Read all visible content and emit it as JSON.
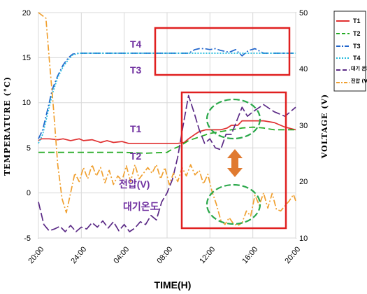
{
  "chart_data": {
    "type": "line",
    "xlabel": "TIME(H)",
    "ylabel_left": "TEMPERATURE (°C)",
    "ylabel_right": "VOLTAGE (V)",
    "ylim_left": [
      -5,
      20
    ],
    "ylim_right": [
      10,
      50
    ],
    "xlim": [
      0,
      24
    ],
    "x_ticks": [
      0,
      4,
      8,
      12,
      16,
      20,
      24
    ],
    "x_tick_labels": [
      "20:00",
      "24:00",
      "04:00",
      "08:00",
      "12:00",
      "16:00",
      "20:00"
    ],
    "y_left_ticks": [
      "-5",
      "0",
      "5",
      "10",
      "15",
      "20"
    ],
    "y_right_ticks": [
      "10",
      "20",
      "30",
      "40",
      "50"
    ],
    "grid": true,
    "legend_position": "right-outside",
    "series": [
      {
        "name": "T1",
        "axis": "left",
        "color": "#e03030",
        "dash": "",
        "x": [
          0,
          0.3,
          1,
          1.8,
          2.3,
          3,
          3.8,
          4.2,
          5,
          5.8,
          6.4,
          7,
          7.8,
          8.4,
          9,
          9.6,
          10.2,
          10.8,
          11.2,
          11.6,
          12.1,
          12.6,
          13,
          13.6,
          14,
          14.6,
          15,
          15.6,
          16,
          16.6,
          17,
          17.6,
          18,
          18.6,
          19,
          19.4,
          20,
          21,
          22,
          23,
          24
        ],
        "values": [
          5.8,
          6,
          6,
          5.9,
          6,
          5.8,
          6,
          5.8,
          5.9,
          5.6,
          5.8,
          5.6,
          5.7,
          5.5,
          5.5,
          5.5,
          5.5,
          5.5,
          5.5,
          5.5,
          5.5,
          5.5,
          5.5,
          5.6,
          6,
          6.5,
          6.8,
          7,
          7,
          7,
          7,
          7.2,
          7.5,
          7.5,
          8,
          8,
          8,
          8,
          7.8,
          7.3,
          7
        ]
      },
      {
        "name": "T2",
        "axis": "left",
        "color": "#22aa22",
        "dash": "9,5",
        "x": [
          0,
          2,
          4,
          6,
          8,
          10,
          12,
          12.4,
          12.8,
          13.2,
          14,
          15,
          16,
          17,
          18,
          19,
          20,
          21,
          22,
          23,
          24
        ],
        "values": [
          4.5,
          4.5,
          4.5,
          4.5,
          4.5,
          4.4,
          4.5,
          4.8,
          5,
          5.2,
          5.8,
          6.2,
          6.6,
          6.8,
          7,
          7.2,
          7.3,
          7.2,
          7,
          7,
          7
        ]
      },
      {
        "name": "T3",
        "axis": "left",
        "color": "#2266cc",
        "dash": "10,3,2,3",
        "x": [
          0,
          0.4,
          0.8,
          1.3,
          1.8,
          2.3,
          2.8,
          3.2,
          3.8,
          4.6,
          5.4,
          6.2,
          7,
          8,
          9,
          10,
          11,
          12,
          13,
          14,
          14.6,
          15,
          15.5,
          16,
          16.5,
          17,
          17.8,
          18.4,
          19,
          19.6,
          20.2,
          21,
          22,
          23,
          24
        ],
        "values": [
          6,
          7,
          9,
          11.5,
          13,
          14.2,
          15,
          15.4,
          15.5,
          15.5,
          15.5,
          15.5,
          15.5,
          15.5,
          15.5,
          15.5,
          15.5,
          15.5,
          15.5,
          15.5,
          15.9,
          16,
          16,
          15.9,
          16,
          15.8,
          15.6,
          15.9,
          15.2,
          15.8,
          16,
          15.5,
          15.5,
          15.5,
          15.5
        ]
      },
      {
        "name": "T4",
        "axis": "left",
        "color": "#22bbdd",
        "dash": "2,2",
        "x": [
          0,
          0.4,
          0.8,
          1.3,
          1.8,
          2.3,
          2.8,
          3.2,
          3.8,
          5,
          7,
          9,
          11,
          13,
          15,
          17,
          19,
          21,
          23,
          24
        ],
        "values": [
          5.5,
          6.5,
          8.5,
          11,
          12.8,
          14,
          14.8,
          15.3,
          15.5,
          15.5,
          15.5,
          15.5,
          15.5,
          15.5,
          15.5,
          15.5,
          15.5,
          15.5,
          15.5,
          15.5
        ]
      },
      {
        "name": "대기온도",
        "axis": "left",
        "color": "#5b2a86",
        "dash": "12,4",
        "x": [
          0,
          0.5,
          1,
          1.5,
          2,
          2.5,
          3,
          3.5,
          4,
          4.5,
          5,
          5.5,
          6,
          6.5,
          7,
          7.5,
          8,
          8.5,
          9,
          9.5,
          10,
          10.5,
          11,
          11.5,
          12,
          12.5,
          13,
          13.5,
          14,
          14.5,
          15,
          15.5,
          16,
          16.5,
          17,
          17.5,
          18,
          18.5,
          19,
          19.5,
          20,
          21,
          22,
          23,
          24
        ],
        "values": [
          -1,
          -3.5,
          -4.2,
          -4,
          -3.7,
          -4.3,
          -3.6,
          -4.3,
          -3.8,
          -4,
          -3.3,
          -3.8,
          -3.1,
          -3.9,
          -3.2,
          -4.2,
          -3.5,
          -4.3,
          -3.9,
          -3.2,
          -3.5,
          -2.5,
          -3,
          -1,
          0,
          1.5,
          4,
          7.5,
          10.8,
          9,
          7,
          5.5,
          6,
          5,
          4.8,
          6.5,
          6.5,
          8,
          9.5,
          8.5,
          9,
          9.8,
          9,
          8.5,
          9.5
        ]
      },
      {
        "name": "전압(V)",
        "axis": "right",
        "color": "#f0a030",
        "dash": "9,3,2,3",
        "x": [
          0,
          0.7,
          1,
          1.4,
          1.8,
          2.2,
          2.6,
          3,
          3.4,
          3.8,
          4.2,
          4.6,
          5,
          5.4,
          5.8,
          6.2,
          6.6,
          7,
          7.4,
          7.8,
          8.2,
          8.6,
          9,
          9.4,
          9.8,
          10.2,
          10.6,
          11,
          11.4,
          11.8,
          12.2,
          12.6,
          13,
          13.4,
          13.8,
          14.2,
          14.6,
          15,
          15.4,
          15.8,
          16.2,
          16.6,
          17,
          17.4,
          17.8,
          18.2,
          18.6,
          19,
          19.4,
          19.8,
          20.2,
          20.6,
          21,
          21.4,
          21.8,
          22.2,
          22.6,
          23,
          23.4,
          23.8,
          24
        ],
        "values": [
          50,
          49,
          42,
          33,
          23,
          17,
          14.5,
          18,
          21.5,
          20,
          22.5,
          20.5,
          23,
          21,
          22.5,
          19.8,
          22,
          19.5,
          21,
          20.2,
          22.8,
          20,
          23,
          20.5,
          21.5,
          22.5,
          21.5,
          23,
          20.5,
          22.5,
          19.5,
          21.5,
          20,
          22.5,
          21,
          23,
          21.2,
          22,
          19.6,
          21.3,
          18.2,
          16,
          13.2,
          12.4,
          13.6,
          12.5,
          12.2,
          12.7,
          14.8,
          13.9,
          17.6,
          15.8,
          18,
          15.3,
          17.9,
          15.1,
          14.8,
          15.7,
          16.6,
          17.7,
          16.6
        ]
      }
    ],
    "annotations": [
      "T4",
      "T3",
      "T1",
      "T2",
      "전압(V)",
      "대기온도"
    ]
  },
  "legend": {
    "entries": [
      "T1",
      "T2",
      "T3",
      "T4",
      "대기 온도",
      "전압 (V)"
    ]
  },
  "colors": {
    "highlight_box": "#e02020",
    "oval": "#2aa84a",
    "double_arrow": "#e07a30",
    "annotation_text": "#7030a0"
  }
}
